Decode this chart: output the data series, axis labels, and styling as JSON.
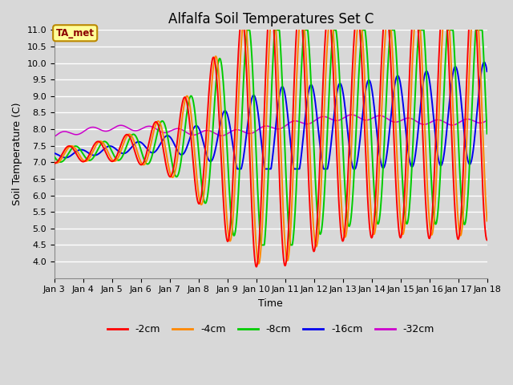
{
  "title": "Alfalfa Soil Temperatures Set C",
  "xlabel": "Time",
  "ylabel": "Soil Temperature (C)",
  "ylim": [
    3.5,
    11.0
  ],
  "yticks": [
    4.0,
    4.5,
    5.0,
    5.5,
    6.0,
    6.5,
    7.0,
    7.5,
    8.0,
    8.5,
    9.0,
    9.5,
    10.0,
    10.5,
    11.0
  ],
  "colors": {
    "-2cm": "#ff0000",
    "-4cm": "#ff8800",
    "-8cm": "#00cc00",
    "-16cm": "#0000ee",
    "-32cm": "#cc00cc"
  },
  "linewidths": {
    "-2cm": 1.4,
    "-4cm": 1.4,
    "-8cm": 1.4,
    "-16cm": 1.4,
    "-32cm": 1.1
  },
  "annotation_text": "TA_met",
  "annotation_color": "#8b0000",
  "annotation_bg": "#ffff99",
  "annotation_border": "#bb8800",
  "background_color": "#d8d8d8",
  "plot_bg_color": "#d8d8d8",
  "grid_color": "#ffffff",
  "title_fontsize": 12,
  "axis_fontsize": 9,
  "tick_fontsize": 8,
  "x_start": 3.0,
  "x_end": 18.0,
  "xtick_positions": [
    3,
    4,
    5,
    6,
    7,
    8,
    9,
    10,
    11,
    12,
    13,
    14,
    15,
    16,
    17,
    18
  ],
  "xtick_labels": [
    "Jan 3",
    "Jan 4",
    "Jan 5",
    "Jan 6",
    "Jan 7",
    "Jan 8",
    "Jan 9",
    "Jan 10",
    "Jan 11",
    "Jan 12",
    "Jan 13",
    "Jan 14",
    "Jan 15",
    "Jan 16",
    "Jan 17",
    "Jan 18"
  ]
}
